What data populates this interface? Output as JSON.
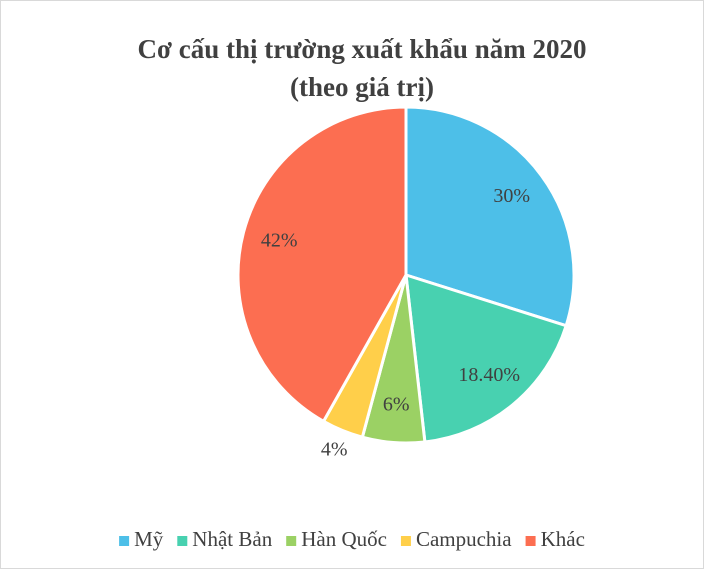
{
  "chart_data": {
    "type": "pie",
    "title": [
      "Cơ cấu thị trường xuất khẩu năm 2020",
      "(theo giá trị)"
    ],
    "categories": [
      "Mỹ",
      "Nhật Bản",
      "Hàn Quốc",
      "Campuchia",
      "Khác"
    ],
    "values": [
      30,
      18.4,
      6,
      4,
      42
    ],
    "value_labels": [
      "30%",
      "18.40%",
      "6%",
      "4%",
      "42%"
    ],
    "colors": [
      "#4dbfe8",
      "#48d1b0",
      "#9bd164",
      "#ffcf4a",
      "#fc6e51"
    ],
    "legend": "bottom"
  }
}
